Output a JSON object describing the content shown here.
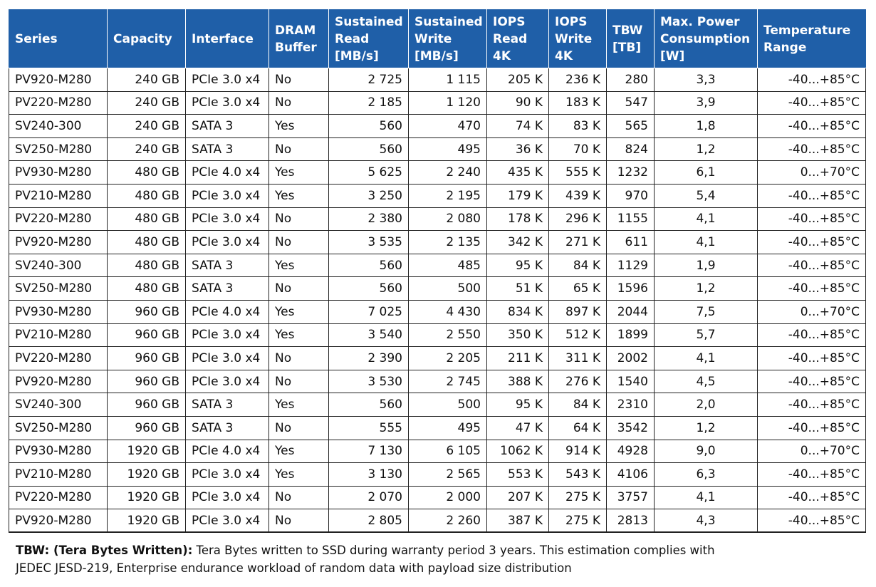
{
  "table": {
    "headers": [
      "Series",
      "Capacity",
      "Interface",
      "DRAM\nBuffer",
      "Sustained\nRead\n[MB/s]",
      "Sustained\nWrite\n[MB/s]",
      "IOPS\nRead\n4K",
      "IOPS\nWrite\n4K",
      "TBW\n[TB]",
      "Max. Power\nConsumption\n[W]",
      "Temperature\nRange"
    ],
    "rows": [
      [
        "PV920-M280",
        "240 GB",
        "PCIe 3.0 x4",
        "No",
        "2 725",
        "1 115",
        "205 K",
        "236 K",
        "280",
        "3,3",
        "-40...+85°C"
      ],
      [
        "PV220-M280",
        "240 GB",
        "PCIe 3.0 x4",
        "No",
        "2 185",
        "1 120",
        "90 K",
        "183 K",
        "547",
        "3,9",
        "-40...+85°C"
      ],
      [
        "SV240-300",
        "240 GB",
        "SATA 3",
        "Yes",
        "560",
        "470",
        "74 K",
        "83 K",
        "565",
        "1,8",
        "-40...+85°C"
      ],
      [
        "SV250-M280",
        "240 GB",
        "SATA 3",
        "No",
        "560",
        "495",
        "36 K",
        "70 K",
        "824",
        "1,2",
        "-40...+85°C"
      ],
      [
        "PV930-M280",
        "480 GB",
        "PCIe 4.0 x4",
        "Yes",
        "5 625",
        "2 240",
        "435 K",
        "555 K",
        "1232",
        "6,1",
        "0...+70°C"
      ],
      [
        "PV210-M280",
        "480 GB",
        "PCIe 3.0 x4",
        "Yes",
        "3 250",
        "2 195",
        "179 K",
        "439 K",
        "970",
        "5,4",
        "-40...+85°C"
      ],
      [
        "PV220-M280",
        "480 GB",
        "PCIe 3.0 x4",
        "No",
        "2 380",
        "2 080",
        "178 K",
        "296 K",
        "1155",
        "4,1",
        "-40...+85°C"
      ],
      [
        "PV920-M280",
        "480 GB",
        "PCIe 3.0 x4",
        "No",
        "3 535",
        "2 135",
        "342 K",
        "271 K",
        "611",
        "4,1",
        "-40...+85°C"
      ],
      [
        "SV240-300",
        "480 GB",
        "SATA 3",
        "Yes",
        "560",
        "485",
        "95 K",
        "84 K",
        "1129",
        "1,9",
        "-40...+85°C"
      ],
      [
        "SV250-M280",
        "480 GB",
        "SATA 3",
        "No",
        "560",
        "500",
        "51 K",
        "65 K",
        "1596",
        "1,2",
        "-40...+85°C"
      ],
      [
        "PV930-M280",
        "960 GB",
        "PCIe 4.0 x4",
        "Yes",
        "7 025",
        "4 430",
        "834 K",
        "897 K",
        "2044",
        "7,5",
        "0...+70°C"
      ],
      [
        "PV210-M280",
        "960 GB",
        "PCIe 3.0 x4",
        "Yes",
        "3 540",
        "2 550",
        "350 K",
        "512 K",
        "1899",
        "5,7",
        "-40...+85°C"
      ],
      [
        "PV220-M280",
        "960 GB",
        "PCIe 3.0 x4",
        "No",
        "2 390",
        "2 205",
        "211 K",
        "311 K",
        "2002",
        "4,1",
        "-40...+85°C"
      ],
      [
        "PV920-M280",
        "960 GB",
        "PCIe 3.0 x4",
        "No",
        "3 530",
        "2 745",
        "388 K",
        "276 K",
        "1540",
        "4,5",
        "-40...+85°C"
      ],
      [
        "SV240-300",
        "960 GB",
        "SATA 3",
        "Yes",
        "560",
        "500",
        "95 K",
        "84 K",
        "2310",
        "2,0",
        "-40...+85°C"
      ],
      [
        "SV250-M280",
        "960 GB",
        "SATA 3",
        "No",
        "555",
        "495",
        "47 K",
        "64 K",
        "3542",
        "1,2",
        "-40...+85°C"
      ],
      [
        "PV930-M280",
        "1920 GB",
        "PCIe 4.0 x4",
        "Yes",
        "7 130",
        "6 105",
        "1062 K",
        "914 K",
        "4928",
        "9,0",
        "0...+70°C"
      ],
      [
        "PV210-M280",
        "1920 GB",
        "PCIe 3.0 x4",
        "Yes",
        "3 130",
        "2 565",
        "553 K",
        "543 K",
        "4106",
        "6,3",
        "-40...+85°C"
      ],
      [
        "PV220-M280",
        "1920 GB",
        "PCIe 3.0 x4",
        "No",
        "2 070",
        "2 000",
        "207 K",
        "275 K",
        "3757",
        "4,1",
        "-40...+85°C"
      ],
      [
        "PV920-M280",
        "1920 GB",
        "PCIe 3.0 x4",
        "No",
        "2 805",
        "2 260",
        "387 K",
        "275 K",
        "2813",
        "4,3",
        "-40...+85°C"
      ]
    ]
  },
  "footnote": {
    "term": "TBW: (Tera Bytes Written):",
    "line1": " Tera Bytes written to SSD during warranty period 3 years. This estimation complies with",
    "line2": "JEDEC JESD-219, Enterprise endurance workload of random data with payload size distribution"
  },
  "colors": {
    "header_background": "#1f5fa8",
    "header_text": "#ffffff",
    "grid_lines": "#222222"
  }
}
